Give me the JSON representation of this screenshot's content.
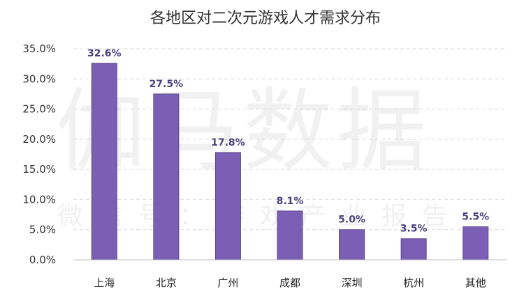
{
  "watermark": {
    "main": "伽马数据",
    "sub": "微信号：游戏产业报告"
  },
  "colors": {
    "bar": "#7b5fb5",
    "bar_edge": "#5a4590",
    "grid": "#d9d9d9",
    "axis": "#bfbfbf"
  },
  "chart_data": {
    "type": "bar",
    "title": "各地区对二次元游戏人才需求分布",
    "categories": [
      "上海",
      "北京",
      "广州",
      "成都",
      "深圳",
      "杭州",
      "其他"
    ],
    "values": [
      32.6,
      27.5,
      17.8,
      8.1,
      5.0,
      3.5,
      5.5
    ],
    "data_labels": [
      "32.6%",
      "27.5%",
      "17.8%",
      "8.1%",
      "5.0%",
      "3.5%",
      "5.5%"
    ],
    "yticks": [
      0,
      5,
      10,
      15,
      20,
      25,
      30,
      35
    ],
    "ytick_labels": [
      "0.0%",
      "5.0%",
      "10.0%",
      "15.0%",
      "20.0%",
      "25.0%",
      "30.0%",
      "35.0%"
    ],
    "ylim": [
      0,
      35
    ],
    "xlabel": "",
    "ylabel": "",
    "grid": true,
    "legend": "none"
  }
}
